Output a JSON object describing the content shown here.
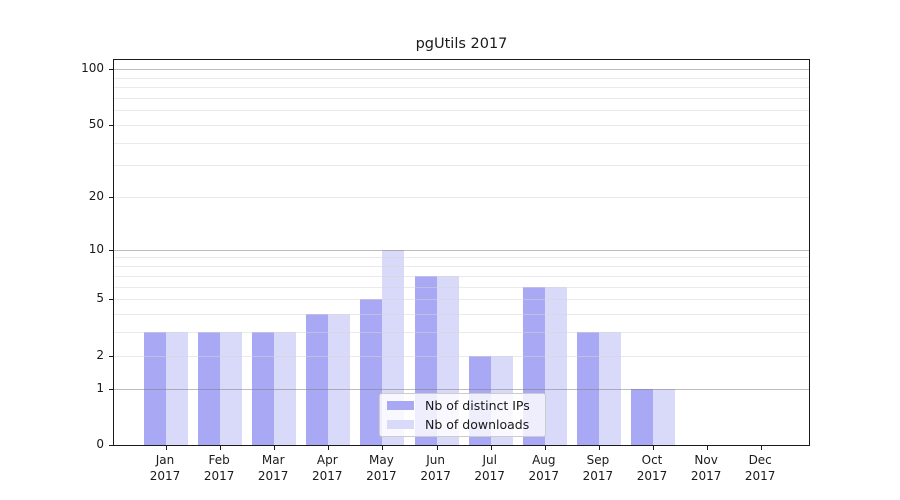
{
  "chart_data": {
    "type": "bar",
    "title": "pgUtils 2017",
    "categories": [
      "Jan 2017",
      "Feb 2017",
      "Mar 2017",
      "Apr 2017",
      "May 2017",
      "Jun 2017",
      "Jul 2017",
      "Aug 2017",
      "Sep 2017",
      "Oct 2017",
      "Nov 2017",
      "Dec 2017"
    ],
    "series": [
      {
        "name": "Nb of distinct IPs",
        "color": "#a8a8f5",
        "values": [
          3,
          3,
          3,
          4,
          5,
          7,
          2,
          6,
          3,
          1,
          0,
          0
        ]
      },
      {
        "name": "Nb of downloads",
        "color": "#d9d9fa",
        "values": [
          3,
          3,
          3,
          4,
          10,
          7,
          2,
          6,
          3,
          1,
          0,
          0
        ]
      }
    ],
    "xlabel": "",
    "ylabel": "",
    "ylim": [
      0,
      100
    ],
    "y_scale": "log(value+1)",
    "y_ticks": [
      0,
      1,
      2,
      5,
      10,
      20,
      50,
      100
    ],
    "y_emphasized_gridlines": [
      1,
      10,
      100
    ],
    "y_minor_gridlines": [
      3,
      4,
      6,
      7,
      8,
      9,
      30,
      40,
      60,
      70,
      80,
      90
    ],
    "grid": "on",
    "legend_position": "lower center"
  },
  "colors": {
    "bar_distinct_ips": "#a8a8f5",
    "bar_downloads": "#d9d9fa",
    "grid_major": "#bdbdbd",
    "grid_minor": "#ebebeb",
    "axis": "#1a1a1a",
    "legend_border": "#cccccc"
  }
}
